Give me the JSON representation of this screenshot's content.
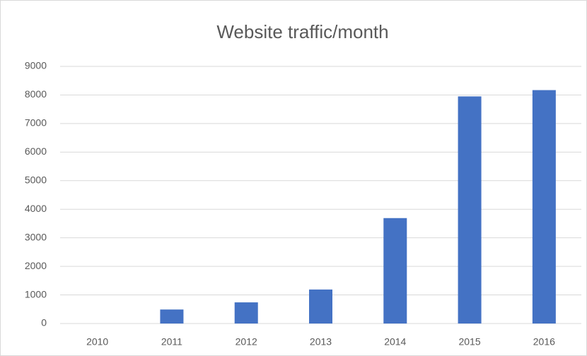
{
  "chart_data": {
    "type": "bar",
    "title": "Website traffic/month",
    "categories": [
      "2010",
      "2011",
      "2012",
      "2013",
      "2014",
      "2015",
      "2016"
    ],
    "values": [
      0,
      490,
      740,
      1190,
      3690,
      7950,
      8170
    ],
    "color": "#4472c4",
    "ylim": [
      0,
      9000
    ],
    "yticks": [
      0,
      1000,
      2000,
      3000,
      4000,
      5000,
      6000,
      7000,
      8000,
      9000
    ],
    "grid": true
  }
}
